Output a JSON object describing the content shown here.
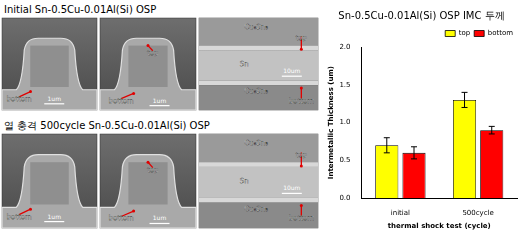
{
  "figure": {
    "rows": [
      {
        "title": "Initial Sn-0.5Cu-0.01Al(Si) OSP",
        "panels": [
          {
            "labels": [
              "bottom"
            ],
            "scale_bar": "1um"
          },
          {
            "labels": [
              "top",
              "bottom"
            ],
            "scale_bar": "1um"
          },
          {
            "labels": [
              "Cu₆Sn₅",
              "top",
              "Sn",
              "Cu₆Sn₅",
              "bottom"
            ],
            "scale_bar": "10um"
          }
        ]
      },
      {
        "title": "열 충격 500cycle Sn-0.5Cu-0.01Al(Si) OSP",
        "panels": [
          {
            "labels": [
              "bottom"
            ],
            "scale_bar": "1um"
          },
          {
            "labels": [
              "top",
              "bottom"
            ],
            "scale_bar": "1um"
          },
          {
            "labels": [
              "Cu₆Sn₅",
              "top",
              "Sn",
              "Cu₆Sn₅",
              "bottom"
            ],
            "scale_bar": "10um"
          }
        ]
      }
    ]
  },
  "chart_data": {
    "type": "bar",
    "title": "Sn-0.5Cu-0.01Al(Si) OSP IMC 두께",
    "categories": [
      "initial",
      "500cycle"
    ],
    "series": [
      {
        "name": "top",
        "color": "#ffff00",
        "values": [
          0.7,
          1.3
        ],
        "errors": [
          0.1,
          0.1
        ]
      },
      {
        "name": "bottom",
        "color": "#ff0000",
        "values": [
          0.6,
          0.9
        ],
        "errors": [
          0.08,
          0.05
        ]
      }
    ],
    "x_label": "thermal shock test (cycle)",
    "y_label": "Intermetallic Thickness (um)",
    "ylim": [
      0,
      2
    ],
    "yticks": [
      {
        "value": 0,
        "label": "0.0"
      },
      0.5,
      {
        "value": 1,
        "label": "1.0"
      },
      1.5,
      {
        "value": 2,
        "label": "2.0"
      }
    ],
    "legend": "upper-right",
    "grid": false
  }
}
